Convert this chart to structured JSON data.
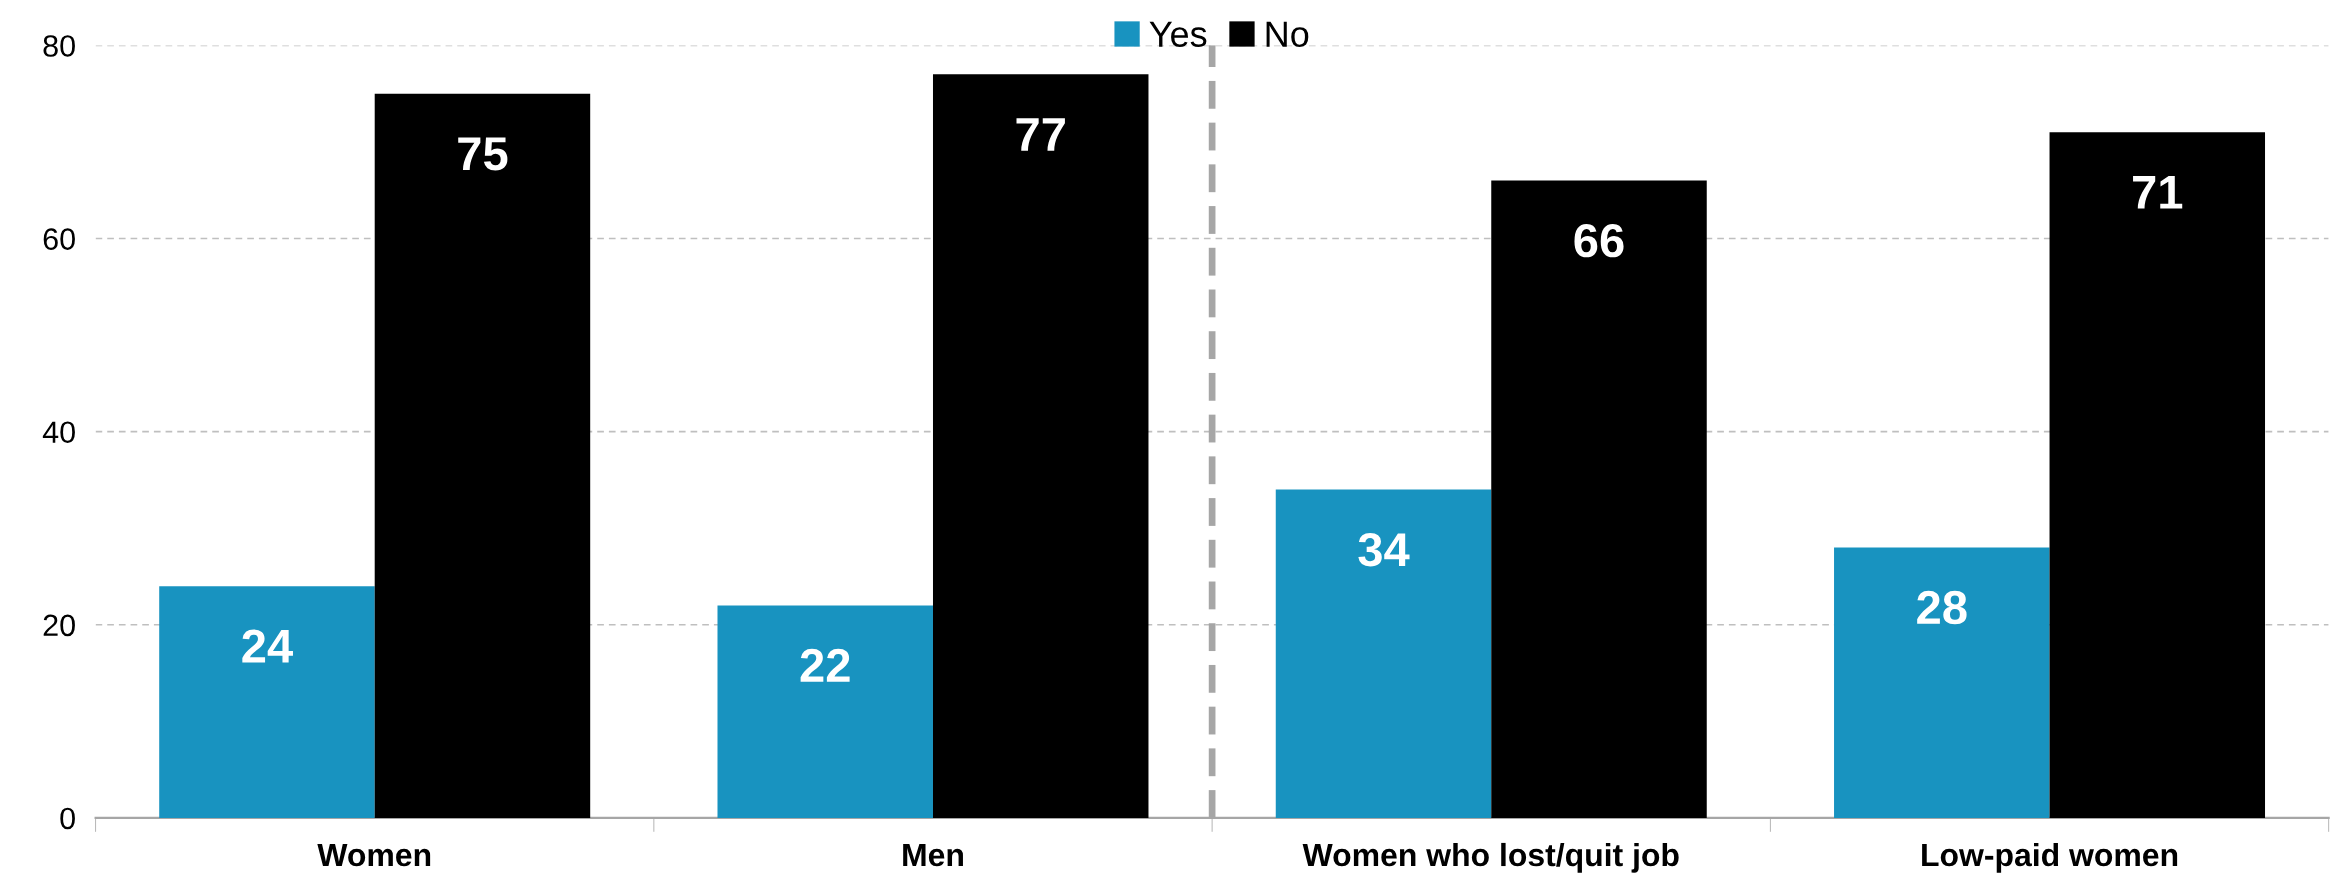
{
  "chart_data": {
    "type": "bar",
    "categories": [
      "Women",
      "Men",
      "Women who lost/quit job",
      "Low-paid women"
    ],
    "series": [
      {
        "name": "Yes",
        "color": "#1893c0",
        "values": [
          24,
          22,
          34,
          28
        ]
      },
      {
        "name": "No",
        "color": "#000000",
        "values": [
          75,
          77,
          66,
          71
        ]
      }
    ],
    "ylim": [
      0,
      80
    ],
    "yticks": [
      0,
      20,
      40,
      60,
      80
    ],
    "grid": "y",
    "legend": "top",
    "data_labels": true
  }
}
